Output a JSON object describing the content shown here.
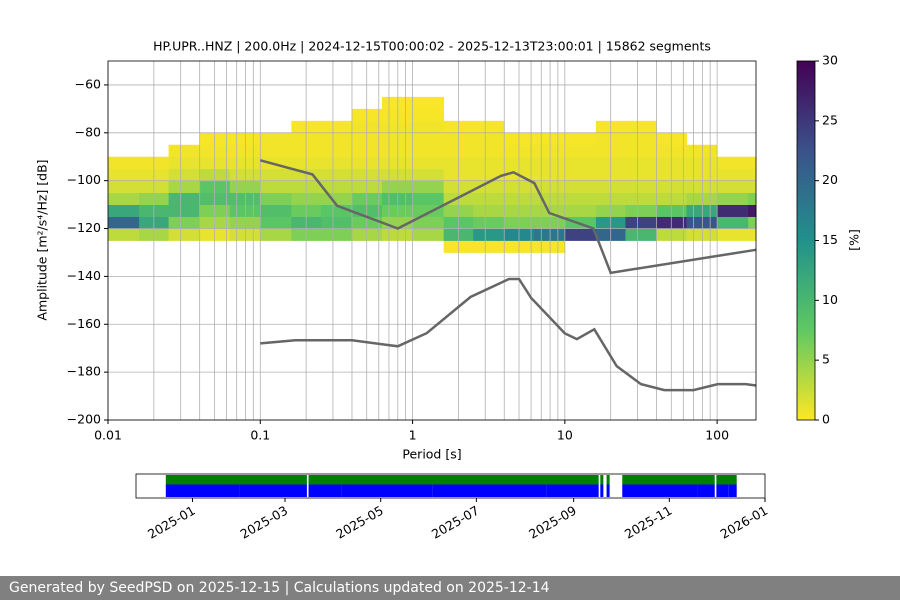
{
  "chart_data": [
    {
      "type": "heatmap",
      "title": "HP.UPR..HNZ | 200.0Hz | 2024-12-15T00:00:02 - 2025-12-13T23:00:01 | 15862 segments",
      "xlabel": "Period [s]",
      "ylabel": "Amplitude [m²/s⁴/Hz] [dB]",
      "xscale": "log",
      "grid": true,
      "xlim": [
        0.01,
        180
      ],
      "ylim": [
        -200,
        -50
      ],
      "xticks": [
        0.01,
        0.1,
        1,
        10,
        100
      ],
      "xminorticks": [
        0.02,
        0.03,
        0.04,
        0.05,
        0.06,
        0.07,
        0.08,
        0.09,
        0.2,
        0.3,
        0.4,
        0.5,
        0.6,
        0.7,
        0.8,
        0.9,
        2,
        3,
        4,
        5,
        6,
        7,
        8,
        9,
        20,
        30,
        40,
        50,
        60,
        70,
        80,
        90
      ],
      "yticks": [
        {
          "value": -200,
          "label": "−200"
        },
        {
          "value": -180,
          "label": "−180"
        },
        {
          "value": -160,
          "label": "−160"
        },
        {
          "value": -140,
          "label": "−140"
        },
        {
          "value": -120,
          "label": "−120"
        },
        {
          "value": -100,
          "label": "−100"
        },
        {
          "value": -80,
          "label": "−80"
        },
        {
          "value": -60,
          "label": "−60"
        }
      ],
      "xbins": [
        0.01,
        0.016,
        0.025,
        0.04,
        0.063,
        0.1,
        0.16,
        0.25,
        0.4,
        0.63,
        1,
        1.6,
        2.5,
        4,
        6.3,
        10,
        16,
        25,
        40,
        63,
        100,
        160,
        180
      ],
      "ybins": [
        -130,
        -125,
        -120,
        -115,
        -110,
        -105,
        -100,
        -95,
        -90,
        -85,
        -80,
        -75,
        -70,
        -65
      ],
      "values": [
        [
          0,
          3,
          20,
          12,
          4,
          2,
          1,
          0.5,
          0,
          0,
          0,
          0,
          0
        ],
        [
          0,
          4,
          12,
          10,
          5,
          2,
          1,
          0.5,
          0,
          0,
          0,
          0,
          0
        ],
        [
          0,
          2,
          6,
          10,
          10,
          4,
          2,
          1,
          0.5,
          0,
          0,
          0,
          0
        ],
        [
          0,
          1,
          4,
          6,
          9,
          8,
          3,
          1,
          0.5,
          0.3,
          0,
          0,
          0
        ],
        [
          0,
          2,
          5,
          8,
          9,
          5,
          2,
          1,
          0.5,
          0.3,
          0,
          0,
          0
        ],
        [
          0,
          4,
          8,
          9,
          6,
          3,
          2,
          1,
          0.5,
          0.5,
          0,
          0,
          0
        ],
        [
          0,
          6,
          10,
          7,
          5,
          3,
          2,
          1,
          0.5,
          0.5,
          0.3,
          0,
          0
        ],
        [
          0,
          6,
          9,
          8,
          5,
          3,
          2,
          1,
          0.5,
          0.5,
          0.3,
          0,
          0
        ],
        [
          0,
          4,
          7,
          9,
          7,
          3,
          2,
          1,
          0.5,
          0.5,
          0.5,
          0.3,
          0
        ],
        [
          0,
          3,
          5,
          7,
          9,
          5,
          2,
          1,
          0.5,
          0.5,
          0.5,
          0.3,
          0.2
        ],
        [
          0,
          4,
          6,
          7,
          8,
          5,
          2,
          1,
          0.5,
          0.5,
          0.5,
          0.3,
          0.2
        ],
        [
          0.3,
          10,
          8,
          5,
          3,
          2,
          1,
          1,
          0.5,
          0.5,
          0.3,
          0,
          0
        ],
        [
          0.3,
          14,
          7,
          4,
          3,
          2,
          1,
          1,
          0.5,
          0.5,
          0.3,
          0,
          0
        ],
        [
          0.3,
          16,
          6,
          4,
          3,
          2,
          1,
          1,
          0.5,
          0.3,
          0,
          0,
          0
        ],
        [
          0.3,
          18,
          6,
          4,
          3,
          2,
          1,
          1,
          0.5,
          0.3,
          0,
          0,
          0
        ],
        [
          0,
          24,
          8,
          4,
          3,
          2,
          1,
          1,
          0.5,
          0.3,
          0,
          0,
          0
        ],
        [
          0,
          20,
          14,
          5,
          3,
          2,
          1,
          1,
          0.5,
          0.5,
          0.3,
          0,
          0
        ],
        [
          0,
          10,
          24,
          6,
          3,
          2,
          1,
          1,
          0.5,
          0.5,
          0.3,
          0,
          0
        ],
        [
          0,
          3,
          26,
          8,
          3,
          2,
          1,
          1,
          0.5,
          0.3,
          0,
          0,
          0
        ],
        [
          0,
          2,
          22,
          12,
          4,
          2,
          1,
          1,
          0.5,
          0,
          0,
          0,
          0
        ],
        [
          0,
          1,
          10,
          26,
          5,
          2,
          1,
          0.5,
          0,
          0,
          0,
          0,
          0
        ],
        [
          0,
          1,
          6,
          28,
          6,
          2,
          1,
          0.5,
          0,
          0,
          0,
          0,
          0
        ]
      ],
      "colormap": [
        "#fde725",
        "#5ec962",
        "#21918c",
        "#3b528b",
        "#440154"
      ],
      "colorbar": {
        "label": "[%]",
        "lim": [
          0,
          30
        ],
        "ticks": [
          0,
          5,
          10,
          15,
          20,
          25,
          30
        ]
      },
      "lines": [
        {
          "color": "#666666",
          "x": [
            0.1,
            0.22,
            0.32,
            0.8,
            3.8,
            4.6,
            6.3,
            7.9,
            15.4,
            20,
            180
          ],
          "y": [
            -91.5,
            -97.4,
            -110.5,
            -120,
            -98,
            -96.5,
            -101,
            -113.5,
            -120,
            -138.5,
            -128.9
          ]
        },
        {
          "color": "#666666",
          "x": [
            0.1,
            0.17,
            0.4,
            0.8,
            1.24,
            2.4,
            4.3,
            5,
            6,
            10,
            12,
            15.6,
            21.9,
            31.6,
            45,
            70,
            101,
            154,
            180
          ],
          "y": [
            -168,
            -166.7,
            -166.7,
            -169.2,
            -163.7,
            -148.6,
            -141.1,
            -141.1,
            -149,
            -163.8,
            -166.2,
            -162.1,
            -177.5,
            -185,
            -187.5,
            -187.5,
            -185,
            -185,
            -185.6
          ]
        }
      ]
    },
    {
      "type": "timeline",
      "xlim": [
        "2024-11-26",
        "2026-01-01"
      ],
      "xticks": [
        {
          "value": "2025-01-01",
          "label": "2025-01"
        },
        {
          "value": "2025-03-01",
          "label": "2025-03"
        },
        {
          "value": "2025-05-01",
          "label": "2025-05"
        },
        {
          "value": "2025-07-01",
          "label": "2025-07"
        },
        {
          "value": "2025-09-01",
          "label": "2025-09"
        },
        {
          "value": "2025-11-01",
          "label": "2025-11"
        },
        {
          "value": "2026-01-01",
          "label": "2026-01"
        }
      ],
      "series": [
        {
          "color": "#008000",
          "segments": [
            [
              "2024-12-15",
              "2025-03-14"
            ],
            [
              "2025-03-16",
              "2025-09-16"
            ],
            [
              "2025-09-18",
              "2025-09-19"
            ],
            [
              "2025-09-22",
              "2025-09-23"
            ],
            [
              "2025-10-02",
              "2025-11-29"
            ],
            [
              "2025-12-01",
              "2025-12-13"
            ]
          ]
        },
        {
          "color": "#0000ff",
          "segments": [
            [
              "2024-12-15",
              "2025-01-30"
            ],
            [
              "2025-01-31",
              "2025-03-14"
            ],
            [
              "2025-03-16",
              "2025-04-05"
            ],
            [
              "2025-04-06",
              "2025-06-02"
            ],
            [
              "2025-06-03",
              "2025-08-14"
            ],
            [
              "2025-08-15",
              "2025-09-16"
            ],
            [
              "2025-09-18",
              "2025-09-19"
            ],
            [
              "2025-09-22",
              "2025-09-23"
            ],
            [
              "2025-10-02",
              "2025-11-18"
            ],
            [
              "2025-11-19",
              "2025-11-29"
            ],
            [
              "2025-12-01",
              "2025-12-08"
            ],
            [
              "2025-12-09",
              "2025-12-13"
            ]
          ]
        }
      ]
    }
  ],
  "footer": "Generated by SeedPSD on 2025-12-15 | Calculations updated on 2025-12-14"
}
